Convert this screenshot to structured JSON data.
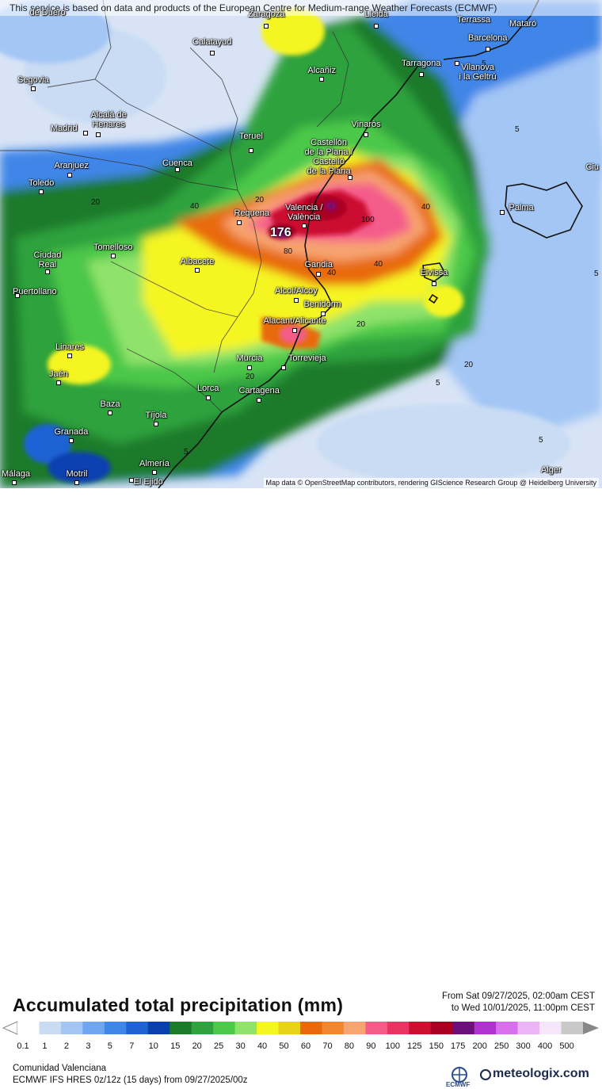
{
  "banner": "This service is based on data and products of the European Centre for Medium-range Weather Forecasts (ECMWF)",
  "credit": "Map data © OpenStreetMap contributors, rendering GIScience Research Group @ Heidelberg University",
  "title": "Accumulated total precipitation (mm)",
  "period": {
    "from": "From Sat 09/27/2025, 02:00am CEST",
    "to": "to Wed 10/01/2025, 11:00pm CEST"
  },
  "region": "Comunidad Valenciana",
  "model": "ECMWF IFS HRES 0z/12z (15 days) from 09/27/2025/00z",
  "brand": {
    "ecmwf": "ECMWF",
    "meteologix": "meteologix.com"
  },
  "peak_value": "176",
  "colorbar": {
    "ticks": [
      "0.1",
      "1",
      "2",
      "3",
      "5",
      "7",
      "10",
      "15",
      "20",
      "25",
      "30",
      "40",
      "50",
      "60",
      "70",
      "80",
      "90",
      "100",
      "125",
      "150",
      "175",
      "200",
      "250",
      "300",
      "400",
      "500"
    ],
    "colors": [
      "#ffffff",
      "#c9dcf3",
      "#a3c6f5",
      "#6fa6f0",
      "#3f86e8",
      "#1e62d4",
      "#0a3fb0",
      "#1a7a2a",
      "#2ea23c",
      "#4cc84a",
      "#8fe36a",
      "#f5f520",
      "#e8d218",
      "#e86a0a",
      "#f2862c",
      "#f7a470",
      "#f45c8a",
      "#e83562",
      "#cc1030",
      "#a80020",
      "#6b0f7a",
      "#b030d0",
      "#d870ee",
      "#ecb4f6",
      "#f6e6fa",
      "#c8c8c8"
    ]
  },
  "isolines": [
    "5",
    "5",
    "5",
    "5",
    "5",
    "5",
    "20",
    "20",
    "20",
    "20",
    "20",
    "40",
    "40",
    "40",
    "40",
    "80",
    "100"
  ],
  "cities": [
    {
      "name": "Zaragoza"
    },
    {
      "name": "Lleida"
    },
    {
      "name": "Terrassa"
    },
    {
      "name": "Mataró"
    },
    {
      "name": "Barcelona"
    },
    {
      "name": "Calatayud"
    },
    {
      "name": "Alcañiz"
    },
    {
      "name": "Tarragona"
    },
    {
      "name": "Vilanova\ni la Geltrú"
    },
    {
      "name": "Segovia"
    },
    {
      "name": "Alcalá de\nHenares"
    },
    {
      "name": "Madrid"
    },
    {
      "name": "Teruel"
    },
    {
      "name": "Vinaròs"
    },
    {
      "name": "Castellón\nde la Plana /\nCastelló\nde la Plana"
    },
    {
      "name": "Aranjuez"
    },
    {
      "name": "Cuenca"
    },
    {
      "name": "Toledo"
    },
    {
      "name": "Ciu"
    },
    {
      "name": "Valencia /\nValència"
    },
    {
      "name": "Requena"
    },
    {
      "name": "Palma"
    },
    {
      "name": "Tomelloso"
    },
    {
      "name": "Ciudad\nReal"
    },
    {
      "name": "Albacete"
    },
    {
      "name": "Gandia"
    },
    {
      "name": "Eivissa"
    },
    {
      "name": "Puertollano"
    },
    {
      "name": "Alcoi/Alcoy"
    },
    {
      "name": "Benidorm"
    },
    {
      "name": "Alacant/Alicante"
    },
    {
      "name": "Linares"
    },
    {
      "name": "Murcia"
    },
    {
      "name": "Torrevieja"
    },
    {
      "name": "Jaén"
    },
    {
      "name": "Lorca"
    },
    {
      "name": "Cartagena"
    },
    {
      "name": "Baza"
    },
    {
      "name": "Tíjola"
    },
    {
      "name": "Granada"
    },
    {
      "name": "Almería"
    },
    {
      "name": "Motril"
    },
    {
      "name": "El Ejido"
    },
    {
      "name": "Málaga"
    },
    {
      "name": "Alger"
    },
    {
      "name": "de Duero"
    }
  ]
}
